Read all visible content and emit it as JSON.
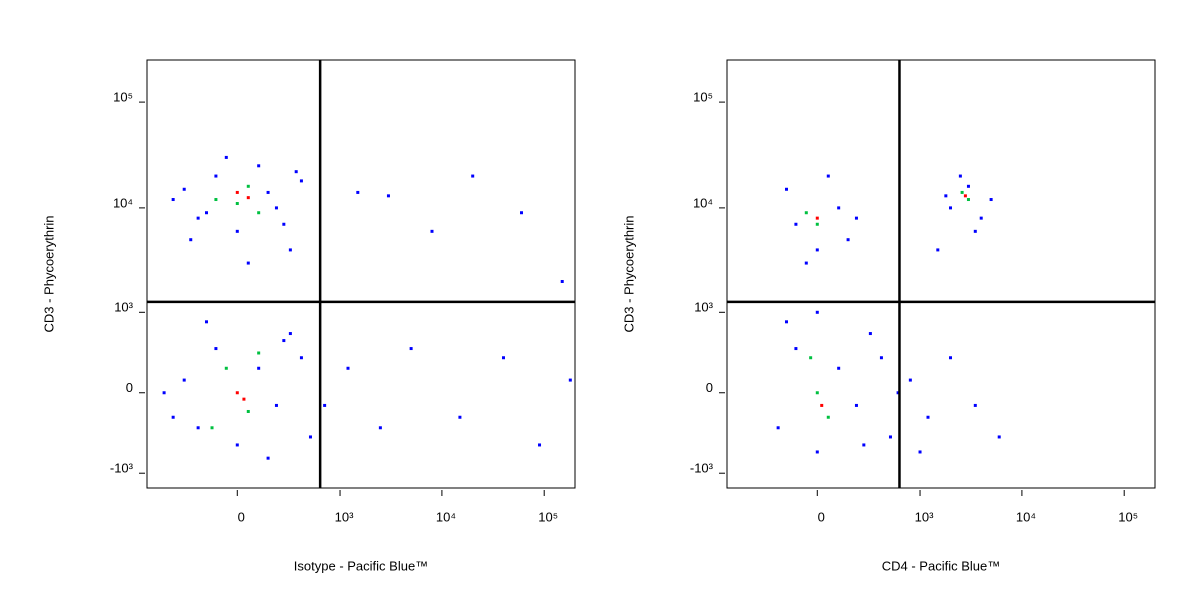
{
  "chart_data": [
    {
      "type": "scatter",
      "x_label": "Isotype - Pacific Blue™",
      "y_label": "CD3 - Phycoerythrin",
      "xscale": "logicle",
      "yscale": "logicle",
      "xlim": [
        -750,
        200000
      ],
      "ylim": [
        -1400,
        250000
      ],
      "xticks": [
        {
          "value": 0,
          "label": "0"
        },
        {
          "value": 1000,
          "label": "10³"
        },
        {
          "value": 10000,
          "label": "10⁴"
        },
        {
          "value": 100000,
          "label": "10⁵"
        }
      ],
      "yticks": [
        {
          "value": -1000,
          "label": "-10³"
        },
        {
          "value": 0,
          "label": "0"
        },
        {
          "value": 1000,
          "label": "10³"
        },
        {
          "value": 10000,
          "label": "10⁴"
        },
        {
          "value": 100000,
          "label": "10⁵"
        }
      ],
      "gates": {
        "x": 630,
        "y": 1270
      },
      "series": [
        {
          "color": "#0000ff",
          "x": [
            -300,
            -200,
            -100,
            0,
            100,
            200,
            300,
            -400,
            400,
            50,
            -50,
            250,
            -250,
            150,
            -150,
            350,
            -300,
            -200,
            -100,
            0,
            100,
            200,
            300,
            -400,
            400,
            500,
            -500,
            150,
            -150,
            250,
            1500,
            3000,
            8000,
            20000,
            60000,
            150000,
            1200,
            2500,
            5000,
            15000,
            40000,
            90000,
            180000,
            700
          ],
          "y": [
            15000,
            8000,
            20000,
            6000,
            25000,
            10000,
            4000,
            12000,
            18000,
            3000,
            30000,
            7000,
            5000,
            14000,
            9000,
            22000,
            100,
            -300,
            400,
            -500,
            200,
            -100,
            600,
            -200,
            300,
            -400,
            0,
            -700,
            800,
            500,
            14000,
            13000,
            6000,
            20000,
            9000,
            2000,
            200,
            -300,
            400,
            -200,
            300,
            -500,
            100,
            -100
          ]
        },
        {
          "color": "#00c040",
          "x": [
            -100,
            50,
            100,
            -50,
            50,
            100,
            -120,
            0
          ],
          "y": [
            12000,
            16000,
            9000,
            200,
            -150,
            350,
            -300,
            11000
          ]
        },
        {
          "color": "#ff0000",
          "x": [
            0,
            50,
            0,
            30
          ],
          "y": [
            14000,
            12500,
            0,
            -50
          ]
        }
      ]
    },
    {
      "type": "scatter",
      "x_label": "CD4 -  Pacific Blue™",
      "y_label": "CD3 - Phycoerythrin",
      "xscale": "logicle",
      "yscale": "logicle",
      "xlim": [
        -750,
        200000
      ],
      "ylim": [
        -1400,
        250000
      ],
      "xticks": [
        {
          "value": 0,
          "label": "0"
        },
        {
          "value": 1000,
          "label": "10³"
        },
        {
          "value": 10000,
          "label": "10⁴"
        },
        {
          "value": 100000,
          "label": "10⁵"
        }
      ],
      "yticks": [
        {
          "value": -1000,
          "label": "-10³"
        },
        {
          "value": 0,
          "label": "0"
        },
        {
          "value": 1000,
          "label": "10³"
        },
        {
          "value": 10000,
          "label": "10⁴"
        },
        {
          "value": 100000,
          "label": "10⁵"
        }
      ],
      "gates": {
        "x": 620,
        "y": 1270
      },
      "series": [
        {
          "color": "#0000ff",
          "x": [
            -100,
            0,
            100,
            -150,
            150,
            50,
            -50,
            200,
            2000,
            3000,
            4000,
            2500,
            1800,
            5000,
            3500,
            1500,
            -200,
            -100,
            0,
            100,
            200,
            300,
            400,
            500,
            -150,
            250,
            600,
            0,
            800,
            1200,
            2000,
            3500,
            6000,
            1000
          ],
          "y": [
            7000,
            4000,
            10000,
            15000,
            5000,
            20000,
            3000,
            8000,
            10000,
            16000,
            8000,
            20000,
            13000,
            12000,
            6000,
            4000,
            -300,
            400,
            -600,
            200,
            -100,
            600,
            300,
            -400,
            800,
            -500,
            0,
            1000,
            100,
            -200,
            300,
            -100,
            -400,
            -600
          ]
        },
        {
          "color": "#00c040",
          "x": [
            0,
            -50,
            3000,
            2600,
            0,
            50,
            -30
          ],
          "y": [
            7000,
            9000,
            12000,
            14000,
            0,
            -200,
            300
          ]
        },
        {
          "color": "#ff0000",
          "x": [
            0,
            2800,
            20
          ],
          "y": [
            8000,
            13000,
            -100
          ]
        }
      ]
    }
  ]
}
